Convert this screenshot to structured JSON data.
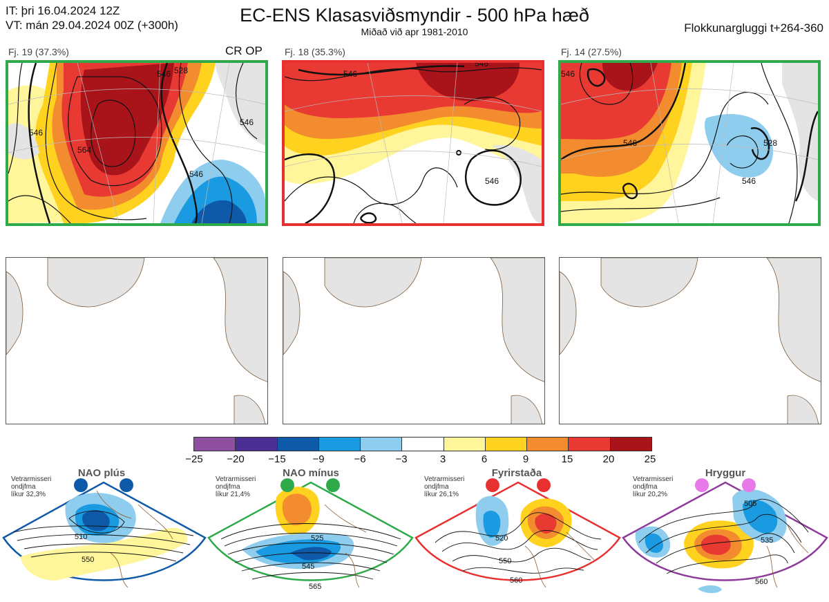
{
  "header": {
    "init_time": "IT: þri 16.04.2024 12Z",
    "valid_time": "VT: mán 29.04.2024 00Z  (+300h)",
    "title": "EC-ENS Klasasviðsmyndir - 500 hPa hæð",
    "subtitle": "Miðað við apr 1981-2010",
    "window": "Flokkunargluggi t+264-360"
  },
  "clusters": [
    {
      "label": "Fj. 19 (37.3%)",
      "flags": "CR OP",
      "frame_color": "#2eaa4a",
      "contour_labels": [
        "546",
        "546",
        "546",
        "564",
        "528",
        "546"
      ]
    },
    {
      "label": "Fj. 18 (35.3%)",
      "flags": "",
      "frame_color": "#e83030",
      "contour_labels": [
        "546",
        "546",
        "546"
      ]
    },
    {
      "label": "Fj. 14 (27.5%)",
      "flags": "",
      "frame_color": "#2eaa4a",
      "contour_labels": [
        "546",
        "528",
        "546",
        "546"
      ]
    }
  ],
  "colorbar": {
    "colors": [
      "#8e4fa0",
      "#4b2f92",
      "#0f5aa8",
      "#1a9ae0",
      "#8fcdee",
      "#ffffff",
      "#fff59a",
      "#ffd21f",
      "#f28c2e",
      "#e83a32",
      "#a8141a"
    ],
    "tick_labels": [
      "−25",
      "−20",
      "−15",
      "−9",
      "−6",
      "−3",
      "3",
      "6",
      "9",
      "15",
      "20",
      "25"
    ]
  },
  "regimes": [
    {
      "title": "NAO plús",
      "note": [
        "Vetrarmisseri",
        "ondjfma",
        "líkur 32,3%"
      ],
      "color": "#0f5aa8",
      "contour_labels": [
        "510",
        "550"
      ]
    },
    {
      "title": "NAO mínus",
      "note": [
        "Vetrarmisseri",
        "ondjfma",
        "líkur 21,4%"
      ],
      "color": "#2eaa4a",
      "contour_labels": [
        "525",
        "545",
        "565"
      ]
    },
    {
      "title": "Fyrirstaða",
      "note": [
        "Vetrarmisseri",
        "ondjfma",
        "líkur 26,1%"
      ],
      "color": "#e83030",
      "contour_labels": [
        "520",
        "550",
        "560"
      ]
    },
    {
      "title": "Hryggur",
      "note": [
        "Vetrarmisseri",
        "ondjfma",
        "líkur 20,2%"
      ],
      "color": "#8e3a9a",
      "contour_labels": [
        "505",
        "535",
        "560"
      ]
    }
  ]
}
